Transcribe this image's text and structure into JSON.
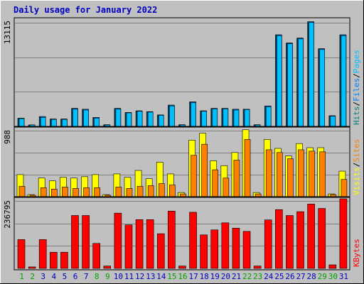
{
  "colors": {
    "background": "#c0c0c0",
    "title": "#0000c0",
    "gridline": "#7f7f7f",
    "pages": "#00c0ff",
    "files": "#0080ff",
    "hits": "#008080",
    "visits": "#ffff00",
    "sites": "#ff8000",
    "kbytes": "#ff0000",
    "weekend": "#00a000",
    "weekday": "#0000c0",
    "separator": "#000000"
  },
  "chart_data": {
    "type": "bar",
    "title": "Daily usage for January 2022",
    "categories": [
      "1",
      "2",
      "3",
      "4",
      "5",
      "6",
      "7",
      "8",
      "9",
      "10",
      "11",
      "12",
      "13",
      "14",
      "15",
      "16",
      "17",
      "18",
      "19",
      "20",
      "21",
      "22",
      "23",
      "24",
      "25",
      "26",
      "27",
      "28",
      "29",
      "30",
      "31"
    ],
    "weekend_days": [
      "1",
      "2",
      "8",
      "9",
      "15",
      "16",
      "22",
      "23",
      "29",
      "30"
    ],
    "panels": [
      {
        "id": "hits-panel",
        "max_label": "13115",
        "ymax": 13115,
        "legend": [
          {
            "text": "Hits",
            "color": "#008080"
          },
          {
            "text": "/",
            "color": "#000000"
          },
          {
            "text": "Files",
            "color": "#0080ff"
          },
          {
            "text": "/",
            "color": "#000000"
          },
          {
            "text": "Pages",
            "color": "#00c0ff"
          }
        ],
        "series": [
          {
            "name": "Hits",
            "color": "#008080",
            "values": [
              1000,
              100,
              1200,
              900,
              900,
              2200,
              2100,
              1100,
              200,
              2200,
              1700,
              1900,
              1800,
              1400,
              2600,
              200,
              3000,
              1900,
              2200,
              2200,
              2100,
              2100,
              200,
              2500,
              11200,
              10200,
              10800,
              12800,
              9500,
              1300,
              11200
            ]
          },
          {
            "name": "Files",
            "color": "#0080ff",
            "values": [
              1000,
              100,
              1200,
              900,
              900,
              2200,
              2100,
              1100,
              200,
              2200,
              1700,
              1900,
              1800,
              1400,
              2600,
              200,
              3000,
              1900,
              2200,
              2200,
              2100,
              2100,
              200,
              2500,
              11200,
              10200,
              10800,
              12800,
              9500,
              1300,
              11200
            ]
          },
          {
            "name": "Pages",
            "color": "#00c0ff",
            "values": [
              950,
              50,
              1100,
              850,
              850,
              2100,
              2000,
              1000,
              150,
              2100,
              1650,
              1850,
              1750,
              1350,
              2500,
              150,
              2900,
              1850,
              2150,
              2150,
              2000,
              2050,
              150,
              2400,
              11100,
              10100,
              10700,
              12700,
              9400,
              1250,
              11100
            ]
          }
        ]
      },
      {
        "id": "visits-panel",
        "max_label": "988",
        "ymax": 988,
        "legend": [
          {
            "text": "Visits",
            "color": "#ffff00"
          },
          {
            "text": "/",
            "color": "#000000"
          },
          {
            "text": "Sites",
            "color": "#ff8000"
          }
        ],
        "series": [
          {
            "name": "Visits",
            "color": "#ffff00",
            "values": [
              320,
              30,
              270,
              230,
              280,
              270,
              290,
              320,
              30,
              330,
              280,
              380,
              260,
              500,
              330,
              60,
              820,
              920,
              520,
              450,
              640,
              970,
              60,
              830,
              700,
              590,
              770,
              710,
              710,
              40,
              370
            ]
          },
          {
            "name": "Sites",
            "color": "#ff8000",
            "values": [
              150,
              20,
              130,
              110,
              140,
              120,
              130,
              130,
              20,
              140,
              120,
              150,
              160,
              190,
              170,
              40,
              600,
              760,
              390,
              270,
              530,
              830,
              40,
              680,
              640,
              550,
              680,
              660,
              650,
              30,
              250
            ]
          }
        ]
      },
      {
        "id": "kbytes-panel",
        "max_label": "236795",
        "ymax": 236795,
        "legend": [
          {
            "text": "KBytes",
            "color": "#ff0000"
          }
        ],
        "series": [
          {
            "name": "KBytes",
            "color": "#ff0000",
            "values": [
              98000,
              5000,
              98000,
              55000,
              55000,
              180000,
              180000,
              85000,
              8000,
              188000,
              148000,
              166000,
              166000,
              118000,
              195000,
              8000,
              191000,
              114000,
              131000,
              155000,
              137000,
              126000,
              8000,
              165000,
              200000,
              180000,
              193000,
              219000,
              204000,
              12000,
              236795
            ]
          }
        ]
      }
    ]
  }
}
